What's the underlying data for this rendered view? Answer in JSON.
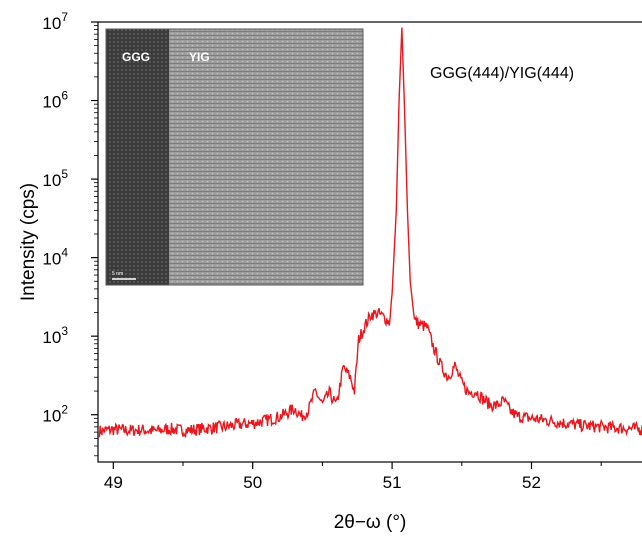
{
  "chart_data": {
    "type": "line",
    "xlabel": "2θ−ω (°)",
    "ylabel": "Intensity (cps)",
    "yscale": "log",
    "xlim": [
      48.89,
      52.8
    ],
    "ylim": [
      25,
      10000000
    ],
    "x_ticks": [
      {
        "value": 49,
        "label": "49"
      },
      {
        "value": 50,
        "label": "50"
      },
      {
        "value": 51,
        "label": "51"
      },
      {
        "value": 52,
        "label": "52"
      }
    ],
    "y_ticks": [
      {
        "value": 100,
        "base": "10",
        "exp": "2"
      },
      {
        "value": 1000,
        "base": "10",
        "exp": "3"
      },
      {
        "value": 10000,
        "base": "10",
        "exp": "4"
      },
      {
        "value": 100000,
        "base": "10",
        "exp": "5"
      },
      {
        "value": 1000000,
        "base": "10",
        "exp": "6"
      },
      {
        "value": 10000000,
        "base": "10",
        "exp": "7"
      }
    ],
    "annotation": "GGG(444)/YIG(444)",
    "series": [
      {
        "color": "#e8171d",
        "x": [
          48.9,
          49.0,
          49.1,
          49.2,
          49.3,
          49.4,
          49.5,
          49.6,
          49.7,
          49.8,
          49.9,
          50.0,
          50.1,
          50.2,
          50.3,
          50.35,
          50.4,
          50.45,
          50.5,
          50.55,
          50.6,
          50.65,
          50.7,
          50.73,
          50.76,
          50.8,
          50.85,
          50.9,
          50.95,
          50.98,
          51.0,
          51.03,
          51.05,
          51.07,
          51.09,
          51.11,
          51.13,
          51.16,
          51.2,
          51.25,
          51.3,
          51.35,
          51.4,
          51.45,
          51.5,
          51.55,
          51.6,
          51.65,
          51.7,
          51.75,
          51.8,
          51.85,
          51.9,
          52.0,
          52.1,
          52.2,
          52.3,
          52.4,
          52.5,
          52.6,
          52.7,
          52.8
        ],
        "y": [
          62,
          65,
          63,
          64,
          62,
          66,
          63,
          65,
          68,
          70,
          75,
          78,
          85,
          95,
          120,
          95,
          115,
          200,
          135,
          190,
          130,
          400,
          300,
          200,
          900,
          1300,
          1900,
          1950,
          1700,
          1500,
          3500,
          40000,
          1000000,
          8500000,
          700000,
          40000,
          5000,
          1600,
          1400,
          1300,
          700,
          420,
          300,
          420,
          250,
          190,
          200,
          160,
          135,
          130,
          150,
          110,
          95,
          90,
          85,
          80,
          75,
          72,
          70,
          68,
          67,
          65
        ]
      }
    ]
  },
  "inset": {
    "label_left": "GGG",
    "label_right": "YIG",
    "scale_bar": "5 nm"
  }
}
